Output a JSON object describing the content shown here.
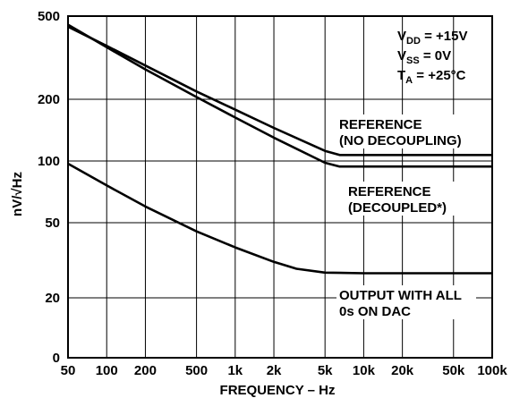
{
  "chart_data": {
    "type": "line",
    "xlabel": "FREQUENCY – Hz",
    "ylabel": "nV/√Hz",
    "x_scale": "log",
    "y_scale": "log",
    "xlim": [
      50,
      100000
    ],
    "y_ticks": [
      "500",
      "200",
      "100",
      "50",
      "20",
      "0"
    ],
    "x_ticks": [
      "50",
      "100",
      "200",
      "500",
      "1k",
      "2k",
      "5k",
      "10k",
      "20k",
      "50k",
      "100k"
    ],
    "grid": true,
    "conditions": [
      {
        "main": "V",
        "sub": "DD",
        "rest": " = +15V"
      },
      {
        "main": "V",
        "sub": "SS",
        "rest": " = 0V"
      },
      {
        "main": "T",
        "sub": "A",
        "rest": " = +25°C"
      }
    ],
    "series": [
      {
        "name": "REFERENCE (NO DECOUPLING)",
        "label_lines": [
          "REFERENCE",
          "(NO DECOUPLING)"
        ],
        "points": [
          [
            50,
            445
          ],
          [
            100,
            360
          ],
          [
            200,
            290
          ],
          [
            500,
            218
          ],
          [
            1000,
            178
          ],
          [
            2000,
            145
          ],
          [
            5000,
            112
          ],
          [
            6500,
            107
          ],
          [
            10000,
            107
          ],
          [
            20000,
            107
          ],
          [
            50000,
            107
          ],
          [
            100000,
            107
          ]
        ]
      },
      {
        "name": "REFERENCE (DECOUPLED*)",
        "label_lines": [
          "REFERENCE",
          "(DECOUPLED*)"
        ],
        "points": [
          [
            50,
            455
          ],
          [
            100,
            355
          ],
          [
            200,
            278
          ],
          [
            500,
            205
          ],
          [
            1000,
            163
          ],
          [
            2000,
            130
          ],
          [
            5000,
            98
          ],
          [
            6500,
            94
          ],
          [
            10000,
            94
          ],
          [
            20000,
            94
          ],
          [
            50000,
            94
          ],
          [
            100000,
            94
          ]
        ]
      },
      {
        "name": "OUTPUT WITH ALL 0s ON DAC",
        "label_lines": [
          "OUTPUT WITH ALL",
          "0s ON DAC"
        ],
        "points": [
          [
            50,
            97
          ],
          [
            100,
            76
          ],
          [
            200,
            60
          ],
          [
            500,
            45
          ],
          [
            1000,
            37
          ],
          [
            2000,
            31
          ],
          [
            3000,
            28.5
          ],
          [
            5000,
            27.2
          ],
          [
            10000,
            27
          ],
          [
            20000,
            27
          ],
          [
            50000,
            27
          ],
          [
            100000,
            27
          ]
        ]
      }
    ]
  }
}
